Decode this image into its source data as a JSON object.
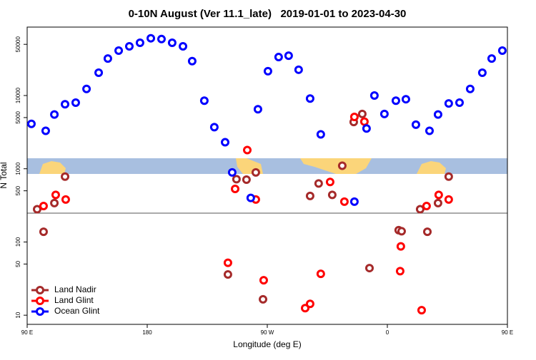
{
  "chart_data": {
    "type": "scatter",
    "title": "0-10N August (Ver 11.1_late)   2019-01-01 to 2023-04-30",
    "xlabel": "Longitude (deg E)",
    "ylabel": "N Total",
    "log_y": true,
    "legend_position": "lower left",
    "xlim": [
      90,
      450
    ],
    "ylim": [
      7.5,
      86000
    ],
    "xticks": [
      {
        "value": 90,
        "label": "90 E"
      },
      180,
      {
        "value": 270,
        "label": "90 W"
      },
      {
        "value": 360,
        "label": "0"
      },
      {
        "value": 450,
        "label": "90 E"
      }
    ],
    "yticks": [
      10,
      50,
      100,
      500,
      1000,
      5000,
      10000,
      50000
    ],
    "series": [
      {
        "name": "Land Nadir",
        "color": "#a52a2a",
        "x": [
          97.5,
          102.3,
          110.4,
          118.4,
          240.5,
          246.9,
          254.4,
          261.4,
          266.8,
          302.1,
          308.5,
          318.7,
          326.2,
          334.8,
          341.2,
          346.6,
          368.5,
          370.7,
          384.6,
          390.0,
          398.0,
          406.0
        ],
        "values": [
          280,
          138,
          340,
          780,
          36,
          720,
          710,
          890,
          16.5,
          425,
          630,
          440,
          1100,
          4350,
          5600,
          44,
          145,
          140,
          280,
          138,
          340,
          780
        ]
      },
      {
        "name": "Land Glint",
        "color": "#ff0000",
        "x": [
          102.3,
          111.4,
          118.9,
          240.5,
          245.9,
          255.0,
          261.4,
          267.3,
          298.4,
          302.1,
          310.1,
          317.1,
          327.8,
          335.3,
          342.8,
          369.6,
          370.1,
          385.7,
          389.4,
          398.5,
          406.0
        ],
        "values": [
          310,
          440,
          380,
          52,
          530,
          1800,
          380,
          30,
          12.5,
          14.3,
          36.7,
          660,
          355,
          5100,
          4400,
          40,
          87,
          11.7,
          310,
          440,
          380
        ]
      },
      {
        "name": "Ocean Glint",
        "color": "#0000ff",
        "x": [
          93.2,
          103.9,
          110.4,
          118.4,
          126.4,
          134.5,
          143.6,
          150.5,
          158.6,
          166.6,
          174.6,
          182.7,
          190.7,
          198.7,
          206.8,
          213.7,
          222.8,
          230.3,
          238.4,
          243.7,
          257.6,
          263.0,
          270.5,
          278.5,
          286.0,
          293.5,
          302.1,
          310.1,
          335.3,
          344.4,
          350.3,
          357.8,
          366.4,
          373.9,
          381.4,
          391.6,
          398.0,
          406.0,
          414.1,
          422.1,
          431.2,
          438.2,
          446.2
        ],
        "values": [
          4100,
          3300,
          5500,
          7600,
          8000,
          12300,
          20500,
          32000,
          41000,
          47000,
          52500,
          60500,
          59000,
          52500,
          47000,
          29500,
          8500,
          3700,
          2300,
          890,
          400,
          6500,
          21500,
          33500,
          35000,
          22500,
          9100,
          2950,
          355,
          3550,
          10000,
          5600,
          8500,
          8900,
          4000,
          3300,
          5500,
          7800,
          8000,
          12300,
          20500,
          32000,
          41000
        ]
      }
    ]
  }
}
